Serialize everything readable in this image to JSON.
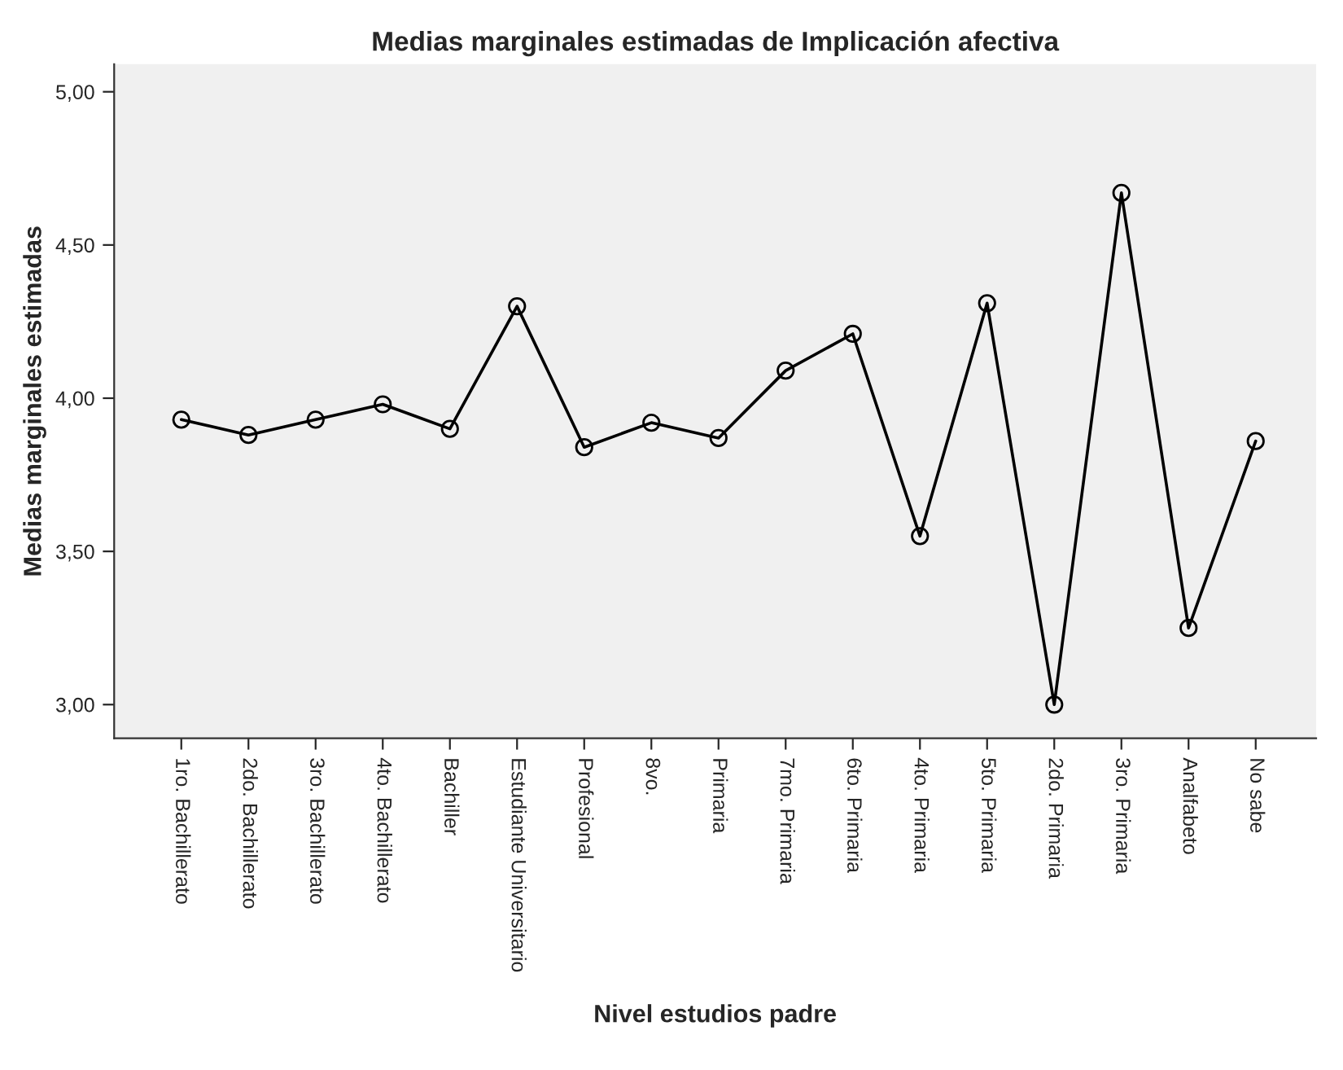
{
  "chart_data": {
    "type": "line",
    "title": "Medias marginales estimadas de Implicación afectiva",
    "xlabel": "Nivel estudios padre",
    "ylabel": "Medias marginales estimadas",
    "categories": [
      "1ro. Bachillerato",
      "2do. Bachillerato",
      "3ro. Bachillerato",
      "4to. Bachillerato",
      "Bachiller",
      "Estudiante Universitario",
      "Profesional",
      "8vo.",
      "Primaria",
      "7mo. Primaria",
      "6to. Primaria",
      "4to. Primaria",
      "5to. Primaria",
      "2do. Primaria",
      "3ro. Primaria",
      "Analfabeto",
      "No sabe"
    ],
    "series": [
      {
        "color": "#000000",
        "values": [
          3.93,
          3.88,
          3.93,
          3.98,
          3.9,
          4.3,
          3.84,
          3.92,
          3.87,
          4.09,
          4.21,
          3.55,
          4.31,
          3.0,
          4.67,
          3.25,
          3.86
        ]
      }
    ],
    "ylim": [
      2.89,
      5.09
    ],
    "yticks": [
      {
        "value": 3.0,
        "label": "3,00"
      },
      {
        "value": 3.5,
        "label": "3,50"
      },
      {
        "value": 4.0,
        "label": "4,00"
      },
      {
        "value": 4.5,
        "label": "4,50"
      },
      {
        "value": 5.0,
        "label": "5,00"
      }
    ],
    "grid": false,
    "legend": false,
    "marker": "circle",
    "line_style": "solid"
  }
}
